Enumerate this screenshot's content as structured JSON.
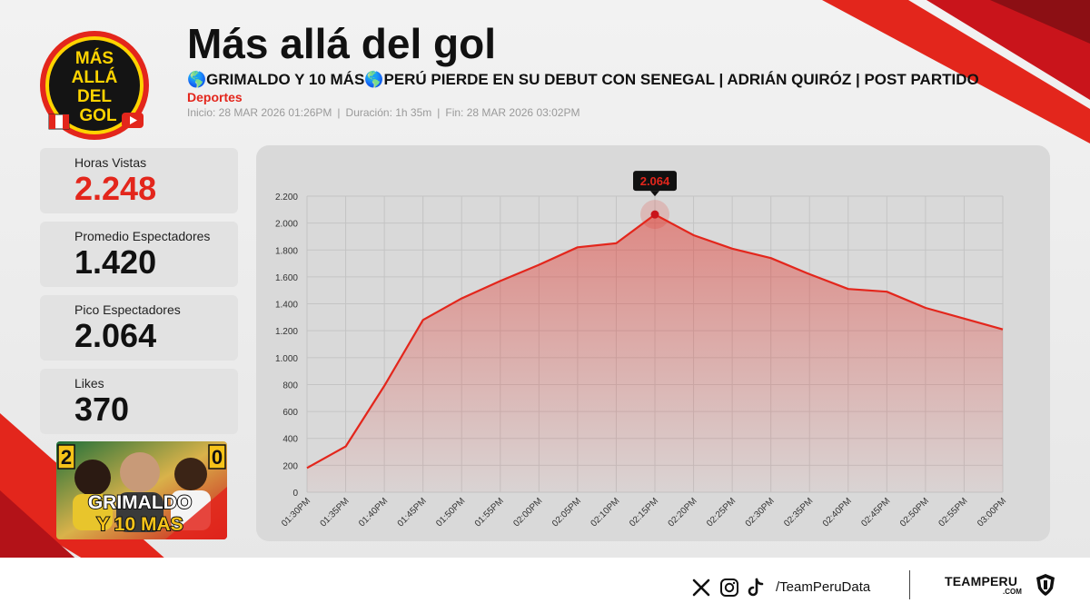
{
  "header": {
    "title": "Más allá del gol",
    "subtitle": "🌎GRIMALDO Y 10 MÁS🌎PERÚ PIERDE EN SU DEBUT CON SENEGAL | ADRIÁN QUIRÓZ | POST PARTIDO",
    "category": "Deportes",
    "start": "Inicio: 28 MAR 2026 01:26PM",
    "duration": "Duración: 1h 35m",
    "end": "Fin: 28 MAR 2026 03:02PM",
    "separator": "|"
  },
  "logo": {
    "lines": [
      "MÁS",
      "ALLÁ",
      "DEL",
      "GOL"
    ]
  },
  "stats": [
    {
      "label": "Horas Vistas",
      "value": "2.248"
    },
    {
      "label": "Promedio Espectadores",
      "value": "1.420"
    },
    {
      "label": "Pico Espectadores",
      "value": "2.064"
    },
    {
      "label": "Likes",
      "value": "370"
    }
  ],
  "thumbnail": {
    "score_left": "2",
    "score_right": "0",
    "line1": "GRIMALDO",
    "line2": "Y 10 MAS"
  },
  "chart_data": {
    "type": "area",
    "x": [
      "01:30PM",
      "01:35PM",
      "01:40PM",
      "01:45PM",
      "01:50PM",
      "01:55PM",
      "02:00PM",
      "02:05PM",
      "02:10PM",
      "02:15PM",
      "02:20PM",
      "02:25PM",
      "02:30PM",
      "02:35PM",
      "02:40PM",
      "02:45PM",
      "02:50PM",
      "02:55PM",
      "03:00PM"
    ],
    "series": [
      {
        "values": [
          180,
          340,
          790,
          1280,
          1440,
          1570,
          1690,
          1820,
          1850,
          2064,
          1910,
          1810,
          1740,
          1620,
          1510,
          1490,
          1370,
          1290,
          1210
        ]
      }
    ],
    "ylim": [
      0,
      2200
    ],
    "yticks": [
      0,
      200,
      400,
      600,
      800,
      1000,
      1200,
      1400,
      1600,
      1800,
      2000,
      2200
    ],
    "ytick_labels": [
      "0",
      "200",
      "400",
      "600",
      "800",
      "1.000",
      "1.200",
      "1.400",
      "1.600",
      "1.800",
      "2.000",
      "2.200"
    ],
    "peak_label": "2.064",
    "grid": true,
    "colors": {
      "line": "#e3261c",
      "fill": "#e3261c",
      "grid": "#c4c4c4",
      "axis_text": "#333333"
    }
  },
  "footer": {
    "handle": "/TeamPeruData",
    "brand": "TEAMPERU",
    "brand_sub": ".COM",
    "icons": [
      "x-icon",
      "instagram-icon",
      "tiktok-icon"
    ]
  }
}
